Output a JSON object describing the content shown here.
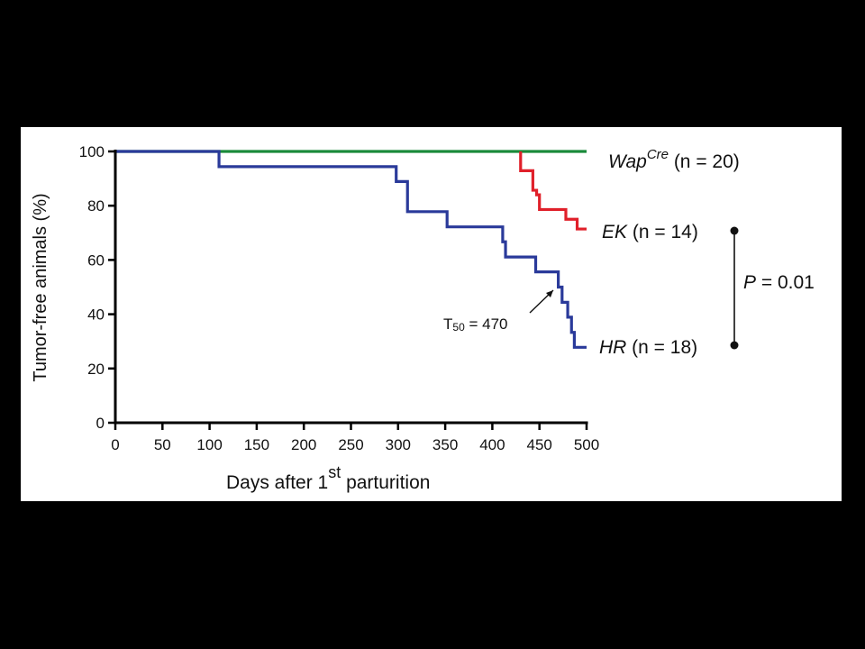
{
  "chart_data": {
    "type": "line",
    "subtype": "kaplan-meier step",
    "xlabel": "Days after 1",
    "xlabel_sup": "st",
    "xlabel_end": " parturition",
    "ylabel": "Tumor-free animals (%)",
    "xlim": [
      0,
      500
    ],
    "ylim": [
      0,
      100
    ],
    "xticks": [
      0,
      50,
      100,
      150,
      200,
      250,
      300,
      350,
      400,
      450,
      500
    ],
    "yticks": [
      0,
      20,
      40,
      60,
      80,
      100
    ],
    "grid": false,
    "series": [
      {
        "key": "wapcre",
        "color": "#1a8a3a",
        "label_main": "Wap",
        "label_sup": "Cre",
        "label_n": " (n = 20)",
        "x": [
          0,
          500
        ],
        "y": [
          100,
          100
        ]
      },
      {
        "key": "ek",
        "color": "#e0202a",
        "label_main": "EK",
        "label_sup": "",
        "label_n": " (n = 14)",
        "x": [
          430,
          430,
          443,
          443,
          447,
          447,
          450,
          450,
          470,
          470,
          478,
          478,
          485,
          485,
          490,
          490,
          500
        ],
        "y": [
          100,
          92.9,
          92.9,
          85.7,
          85.7,
          84,
          84,
          78.6,
          78.6,
          78.6,
          78.6,
          75,
          75,
          75,
          75,
          71.4,
          71.4
        ]
      },
      {
        "key": "hr",
        "color": "#2a3a9a",
        "label_main": "HR",
        "label_sup": "",
        "label_n": " (n = 18)",
        "x": [
          0,
          110,
          110,
          298,
          298,
          310,
          310,
          352,
          352,
          411,
          411,
          414,
          414,
          446,
          446,
          470,
          470,
          474,
          474,
          480,
          480,
          484,
          484,
          487,
          487,
          500
        ],
        "y": [
          100,
          100,
          94.4,
          94.4,
          88.9,
          88.9,
          77.8,
          77.8,
          72.2,
          72.2,
          66.7,
          66.7,
          61.1,
          61.1,
          55.6,
          55.6,
          50,
          50,
          44.4,
          44.4,
          38.9,
          38.9,
          33.3,
          33.3,
          27.8,
          27.8
        ]
      }
    ],
    "annotations": {
      "t50_main": "T",
      "t50_sub": "50",
      "t50_rest": " = 470",
      "p_value_main": "P",
      "p_value_rest": " = 0.01"
    }
  }
}
